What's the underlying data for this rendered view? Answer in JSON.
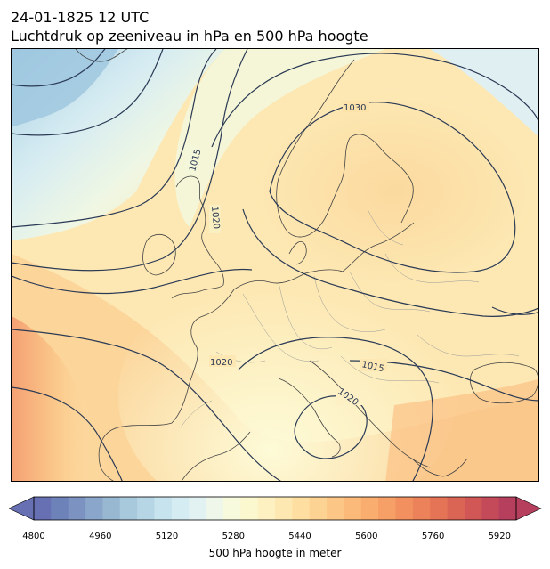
{
  "header": {
    "datetime": "24-01-1825 12 UTC",
    "subtitle": "Luchtdruk op zeeniveau in hPa en 500 hPa hoogte"
  },
  "map": {
    "contour_labels": [
      "1030",
      "1015",
      "1020",
      "1020",
      "1015",
      "1020"
    ],
    "colors": {
      "isobar": "#2b3a55",
      "coast": "#444444",
      "border": "#9a9a9a"
    }
  },
  "colorbar": {
    "label": "500 hPa hoogte in meter",
    "ticks": [
      "4800",
      "4960",
      "5120",
      "5280",
      "5440",
      "5600",
      "5760",
      "5920"
    ],
    "range": [
      4800,
      5960
    ],
    "step": 40,
    "colors": [
      "#6670b3",
      "#6e82ba",
      "#7c93c2",
      "#8aa6ca",
      "#98b8d2",
      "#a8c8dc",
      "#b6d6e6",
      "#c6e3ee",
      "#d4ecf2",
      "#e2f2f3",
      "#eef7ea",
      "#f7fadd",
      "#fbf8cf",
      "#fdf1c1",
      "#fee8b1",
      "#fedea1",
      "#fdd393",
      "#fcc786",
      "#fbba7a",
      "#f9ad6f",
      "#f69f66",
      "#f2915f",
      "#ec8259",
      "#e57356",
      "#db6555",
      "#d05756",
      "#c44a5a",
      "#b73f5e"
    ]
  }
}
